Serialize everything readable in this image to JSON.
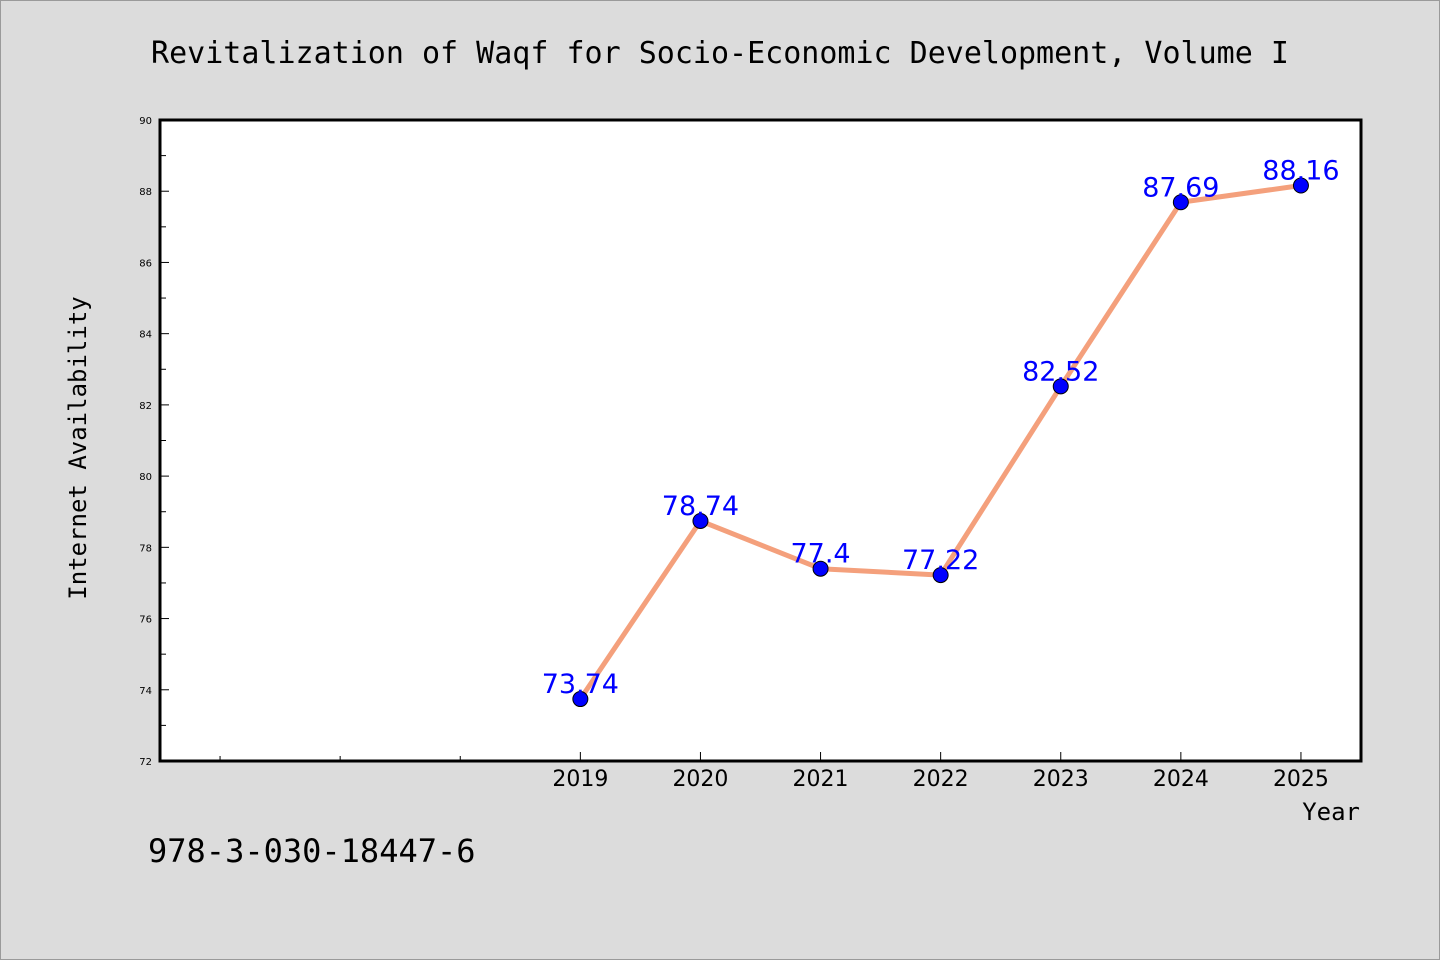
{
  "footer": {
    "isbn": "978-3-030-18447-6"
  },
  "chart_data": {
    "type": "line",
    "title": "Revitalization of Waqf for Socio-Economic Development, Volume I",
    "xlabel": "Year",
    "ylabel": "Internet Availability",
    "ylim": [
      72,
      90
    ],
    "yticks": [
      72,
      74,
      76,
      78,
      80,
      82,
      84,
      86,
      88,
      90
    ],
    "x_slots": 10,
    "x": [
      "2019",
      "2020",
      "2021",
      "2022",
      "2023",
      "2024",
      "2025"
    ],
    "x_start_slot": 3,
    "series": [
      {
        "values": [
          73.74,
          78.74,
          77.4,
          77.22,
          82.52,
          87.69,
          88.16
        ]
      }
    ],
    "data_labels": [
      "73.74",
      "78.74",
      "77.4",
      "77.22",
      "82.52",
      "87.69",
      "88.16"
    ],
    "line_color": "#f4a07c",
    "marker_color": "#0000ff",
    "label_color": "#0000ff",
    "background": "#dcdcdc",
    "plot_background": "#ffffff",
    "grid": false,
    "legend": "none"
  }
}
